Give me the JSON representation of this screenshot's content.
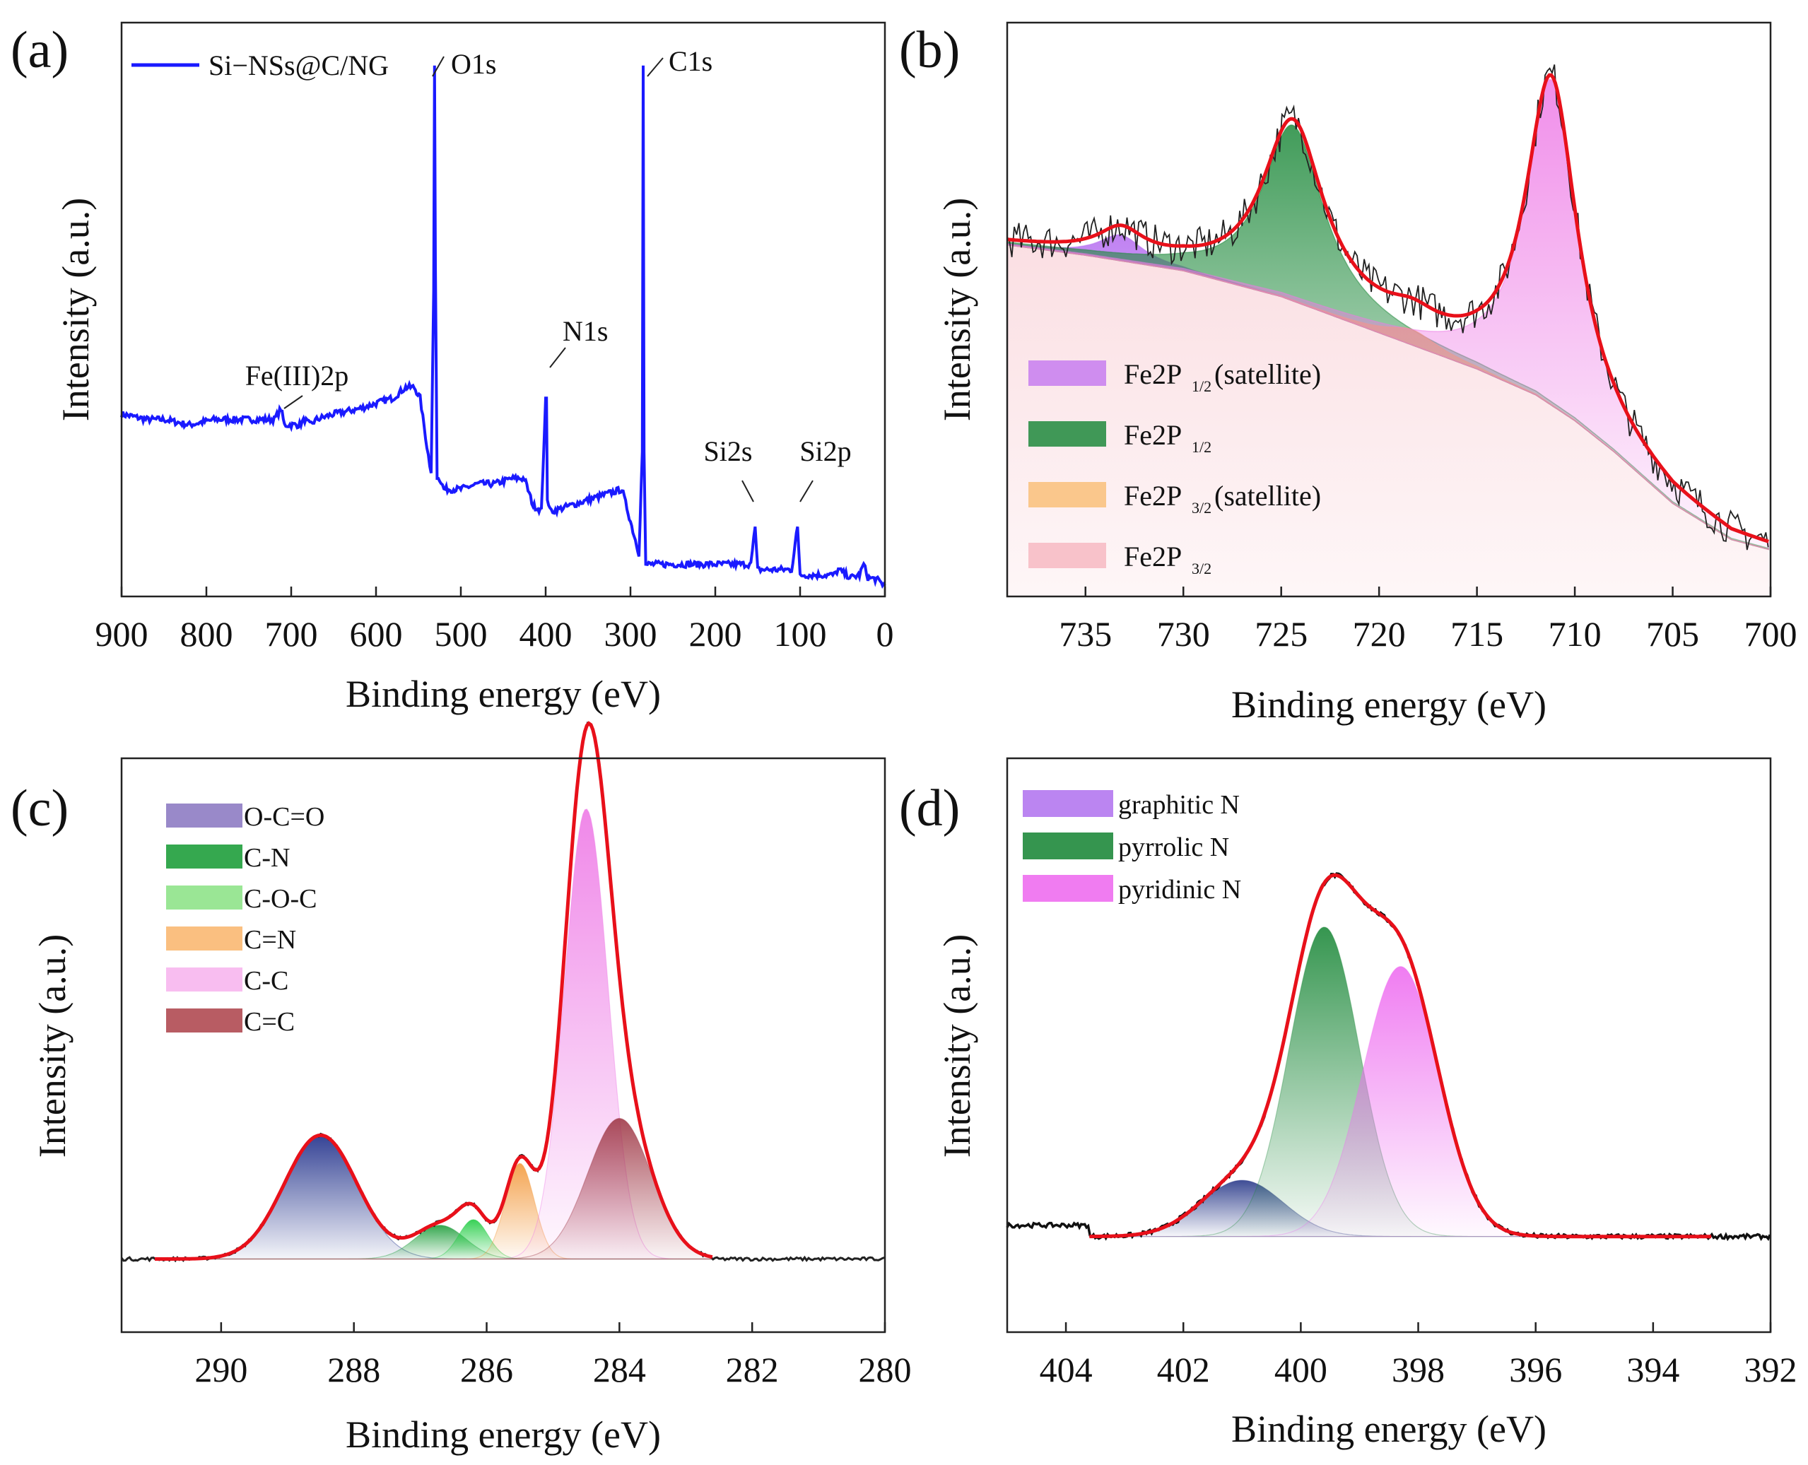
{
  "chart_data": [
    {
      "panel": "(a)",
      "type": "line",
      "title": "",
      "xlabel": "Binding energy (eV)",
      "ylabel": "Intensity (a.u.)",
      "xlim": [
        900,
        0
      ],
      "ylim": [
        0,
        1
      ],
      "grid": false,
      "legend_position": "top-left",
      "legend": [
        "Si−NSs@C/NG"
      ],
      "xticks": [
        900,
        800,
        700,
        600,
        500,
        400,
        300,
        200,
        100,
        0
      ],
      "series": [
        {
          "name": "Si−NSs@C/NG",
          "color": "#1a1aff",
          "x": [
            900,
            870,
            850,
            820,
            790,
            760,
            740,
            720,
            712,
            708,
            700,
            690,
            684,
            678,
            670,
            650,
            620,
            600,
            580,
            565,
            555,
            548,
            540,
            535,
            532,
            531,
            530,
            528,
            525,
            520,
            510,
            500,
            480,
            460,
            440,
            425,
            415,
            405,
            400,
            399,
            398,
            395,
            390,
            370,
            350,
            330,
            310,
            300,
            290,
            286,
            285,
            284,
            282,
            280,
            270,
            250,
            220,
            200,
            180,
            170,
            158,
            153,
            150,
            145,
            130,
            110,
            103,
            100,
            95,
            80,
            60,
            55,
            40,
            30,
            25,
            20,
            10,
            0
          ],
          "y": [
            0.32,
            0.31,
            0.31,
            0.3,
            0.31,
            0.31,
            0.31,
            0.31,
            0.33,
            0.3,
            0.3,
            0.3,
            0.31,
            0.3,
            0.31,
            0.32,
            0.33,
            0.34,
            0.35,
            0.37,
            0.37,
            0.35,
            0.26,
            0.21,
            0.55,
            0.97,
            0.6,
            0.2,
            0.2,
            0.18,
            0.18,
            0.18,
            0.19,
            0.19,
            0.2,
            0.2,
            0.15,
            0.14,
            0.35,
            0.35,
            0.16,
            0.14,
            0.14,
            0.15,
            0.16,
            0.17,
            0.18,
            0.12,
            0.06,
            0.25,
            0.97,
            0.25,
            0.04,
            0.04,
            0.04,
            0.04,
            0.04,
            0.04,
            0.04,
            0.04,
            0.04,
            0.11,
            0.03,
            0.03,
            0.03,
            0.03,
            0.11,
            0.02,
            0.02,
            0.02,
            0.02,
            0.03,
            0.015,
            0.02,
            0.04,
            0.015,
            0.012,
            0.0
          ]
        }
      ],
      "annotations": [
        {
          "text": "O1s",
          "x": 530
        },
        {
          "text": "C1s",
          "x": 284
        },
        {
          "text": "N1s",
          "x": 399
        },
        {
          "text": "Fe(III)2p",
          "x": 710
        },
        {
          "text": "Si2s",
          "x": 153
        },
        {
          "text": "Si2p",
          "x": 103
        }
      ]
    },
    {
      "panel": "(b)",
      "type": "line",
      "title": "",
      "xlabel": "Binding energy (eV)",
      "ylabel": "Intensity (a.u.)",
      "xlim": [
        739,
        700
      ],
      "ylim": [
        0,
        1
      ],
      "grid": false,
      "legend_position": "bottom-left",
      "xticks": [
        735,
        730,
        725,
        720,
        715,
        710,
        705,
        700
      ],
      "legend": [
        {
          "label": "Fe2P",
          "sub": "1/2",
          "suffix": "(satellite)",
          "color": "#c77cf0"
        },
        {
          "label": "Fe2P",
          "sub": "1/2",
          "suffix": "",
          "color": "#1f8a3c"
        },
        {
          "label": "Fe2P",
          "sub": "3/2",
          "suffix": "(satellite)",
          "color": "#f9c07a"
        },
        {
          "label": "Fe2P",
          "sub": "3/2",
          "suffix": "",
          "color": "#f7b9c2"
        }
      ],
      "background": {
        "x": [
          739,
          735,
          730,
          725,
          720,
          715,
          712,
          710,
          708,
          705,
          702,
          700
        ],
        "y": [
          0.62,
          0.6,
          0.57,
          0.52,
          0.45,
          0.38,
          0.33,
          0.28,
          0.22,
          0.12,
          0.05,
          0.03
        ]
      },
      "components": [
        {
          "name": "Fe2P1/2(satellite)",
          "center": 733.2,
          "height": 0.05,
          "width": 1.4,
          "color": "#b56cf0"
        },
        {
          "name": "Fe2P1/2",
          "center": 724.4,
          "height": 0.34,
          "width": 1.9,
          "color": "#1f8a3c"
        },
        {
          "name": "Fe2P3/2(satellite)",
          "center": 718.3,
          "height": 0.03,
          "width": 1.5,
          "color": "#f6a94a"
        },
        {
          "name": "Fe2P3/2",
          "center": 711.2,
          "height": 0.63,
          "width": 1.6,
          "color": "#ee7ae6"
        }
      ],
      "series": [
        {
          "name": "raw",
          "color": "#222222"
        },
        {
          "name": "fit",
          "color": "#e8101a"
        }
      ]
    },
    {
      "panel": "(c)",
      "type": "line",
      "title": "",
      "xlabel": "Binding energy (eV)",
      "ylabel": "Intensity (a.u.)",
      "xlim": [
        291.5,
        280
      ],
      "ylim": [
        0,
        1
      ],
      "grid": false,
      "legend_position": "top-left",
      "xticks": [
        290,
        288,
        286,
        284,
        282,
        280
      ],
      "legend": [
        {
          "label": "O-C=O",
          "color": "#8e7cc3"
        },
        {
          "label": "C-N",
          "color": "#1f9e3c"
        },
        {
          "label": "C-O-C",
          "color": "#8fe38a"
        },
        {
          "label": "C=N",
          "color": "#f9b872"
        },
        {
          "label": "C-C",
          "color": "#f7b6ee"
        },
        {
          "label": "C=C",
          "color": "#b04a52"
        }
      ],
      "baseline": 0.13,
      "components": [
        {
          "name": "O-C=O",
          "center": 288.5,
          "height": 0.22,
          "width": 0.55,
          "color": "#1f2f8a"
        },
        {
          "name": "C-N",
          "center": 286.7,
          "height": 0.06,
          "width": 0.38,
          "color": "#1f9e3c"
        },
        {
          "name": "C-O-C",
          "center": 286.2,
          "height": 0.07,
          "width": 0.22,
          "color": "#22cc44"
        },
        {
          "name": "C=N",
          "center": 285.5,
          "height": 0.17,
          "width": 0.22,
          "color": "#f39a3e"
        },
        {
          "name": "C-C",
          "center": 284.5,
          "height": 0.8,
          "width": 0.33,
          "color": "#ee7ae6"
        },
        {
          "name": "C=C",
          "center": 284.0,
          "height": 0.25,
          "width": 0.48,
          "color": "#a03a48"
        }
      ],
      "series": [
        {
          "name": "raw",
          "color": "#222222"
        },
        {
          "name": "fit",
          "color": "#e8101a"
        }
      ]
    },
    {
      "panel": "(d)",
      "type": "line",
      "title": "",
      "xlabel": "Binding energy (eV)",
      "ylabel": "Intensity (a.u.)",
      "xlim": [
        405,
        392
      ],
      "ylim": [
        0,
        1
      ],
      "grid": false,
      "legend_position": "top-left",
      "xticks": [
        404,
        402,
        400,
        398,
        396,
        394,
        392
      ],
      "legend": [
        {
          "label": "graphitic N",
          "color": "#b478f0"
        },
        {
          "label": "pyrrolic N",
          "color": "#1f8a3c"
        },
        {
          "label": "pyridinic N",
          "color": "#ee6ef0"
        }
      ],
      "baseline": 0.17,
      "components": [
        {
          "name": "graphitic N",
          "center": 401.0,
          "height": 0.1,
          "width": 0.7,
          "color": "#2a3a8a"
        },
        {
          "name": "pyrrolic N",
          "center": 399.6,
          "height": 0.55,
          "width": 0.6,
          "color": "#1f8a3c"
        },
        {
          "name": "pyridinic N",
          "center": 398.3,
          "height": 0.48,
          "width": 0.65,
          "color": "#ee6ef0"
        }
      ],
      "series": [
        {
          "name": "raw",
          "color": "#111111"
        },
        {
          "name": "fit",
          "color": "#e8101a"
        }
      ]
    }
  ]
}
